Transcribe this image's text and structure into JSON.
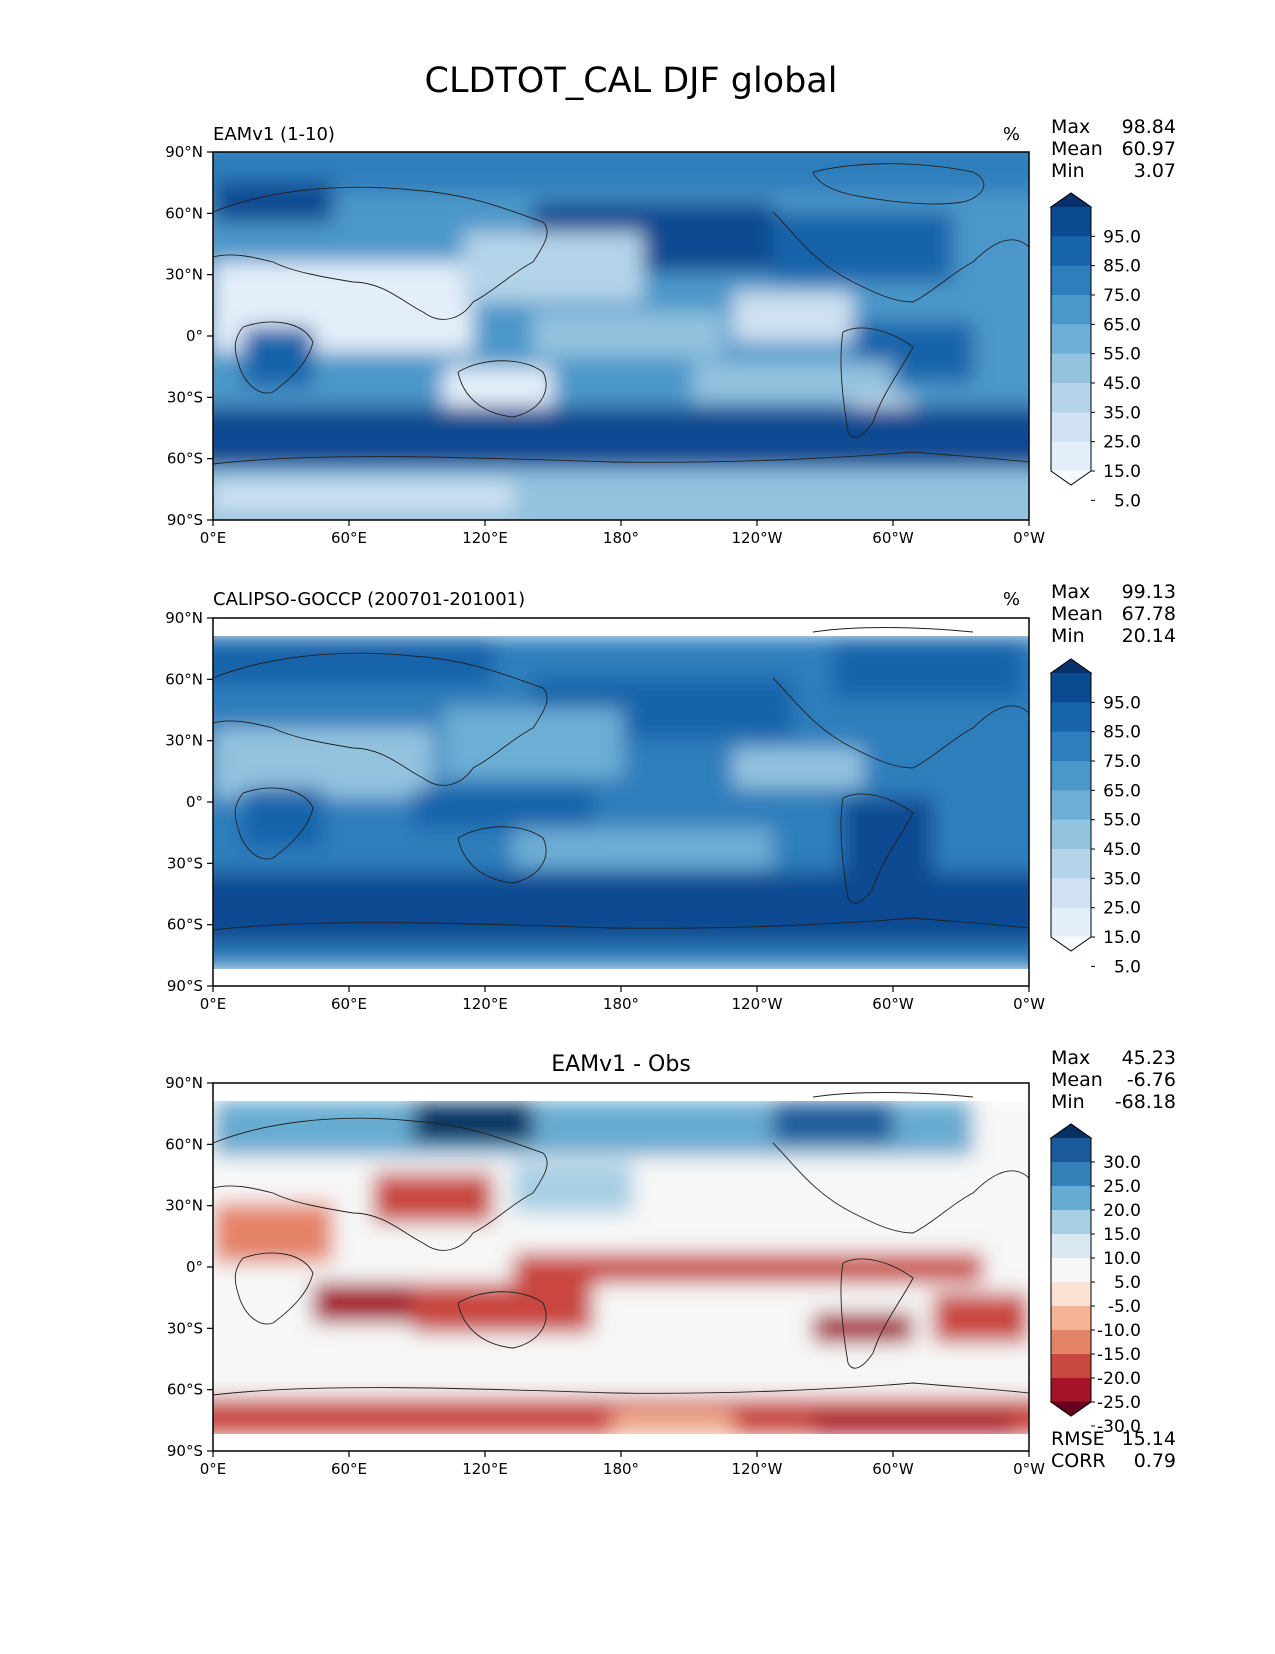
{
  "title": "CLDTOT_CAL DJF global",
  "x_ticks": [
    "0°E",
    "60°E",
    "120°E",
    "180°",
    "120°W",
    "60°W",
    "0°W"
  ],
  "y_ticks": [
    "90°N",
    "60°N",
    "30°N",
    "0°",
    "30°S",
    "60°S",
    "90°S"
  ],
  "colors": {
    "blues": [
      "#f7fbff",
      "#e3eef9",
      "#cfe1f2",
      "#b5d4e9",
      "#93c3df",
      "#6daed5",
      "#4b97c9",
      "#2f7ebc",
      "#1864aa",
      "#0a4a90",
      "#08306b"
    ],
    "diff": [
      "#67001f",
      "#a51429",
      "#c94741",
      "#e58368",
      "#f6b495",
      "#fbe3d4",
      "#f7f7f7",
      "#d9e8f1",
      "#a7cfe4",
      "#68abd0",
      "#3480b9",
      "#1b5a9a",
      "#053061"
    ]
  },
  "panels": [
    {
      "id": "model",
      "left_title": "EAMv1 (1-10)",
      "center_title": "",
      "units": "%",
      "stats": [
        {
          "label": "Max",
          "value": "98.84"
        },
        {
          "label": "Mean",
          "value": "60.97"
        },
        {
          "label": "Min",
          "value": "3.07"
        }
      ],
      "colorbar_labels": [
        "95.0",
        "85.0",
        "75.0",
        "65.0",
        "55.0",
        "45.0",
        "35.0",
        "25.0",
        "15.0",
        "5.0"
      ],
      "bottom_stats": []
    },
    {
      "id": "obs",
      "left_title": "CALIPSO-GOCCP (200701-201001)",
      "center_title": "",
      "units": "%",
      "stats": [
        {
          "label": "Max",
          "value": "99.13"
        },
        {
          "label": "Mean",
          "value": "67.78"
        },
        {
          "label": "Min",
          "value": "20.14"
        }
      ],
      "colorbar_labels": [
        "95.0",
        "85.0",
        "75.0",
        "65.0",
        "55.0",
        "45.0",
        "35.0",
        "25.0",
        "15.0",
        "5.0"
      ],
      "bottom_stats": []
    },
    {
      "id": "diff",
      "left_title": "",
      "center_title": "EAMv1 - Obs",
      "units": "",
      "stats": [
        {
          "label": "Max",
          "value": "45.23"
        },
        {
          "label": "Mean",
          "value": "-6.76"
        },
        {
          "label": "Min",
          "value": "-68.18"
        }
      ],
      "colorbar_labels": [
        "30.0",
        "25.0",
        "20.0",
        "15.0",
        "10.0",
        "5.0",
        "-5.0",
        "-10.0",
        "-15.0",
        "-20.0",
        "-25.0",
        "-30.0"
      ],
      "bottom_stats": [
        {
          "label": "RMSE",
          "value": "15.14"
        },
        {
          "label": "CORR",
          "value": "0.79"
        }
      ]
    }
  ]
}
